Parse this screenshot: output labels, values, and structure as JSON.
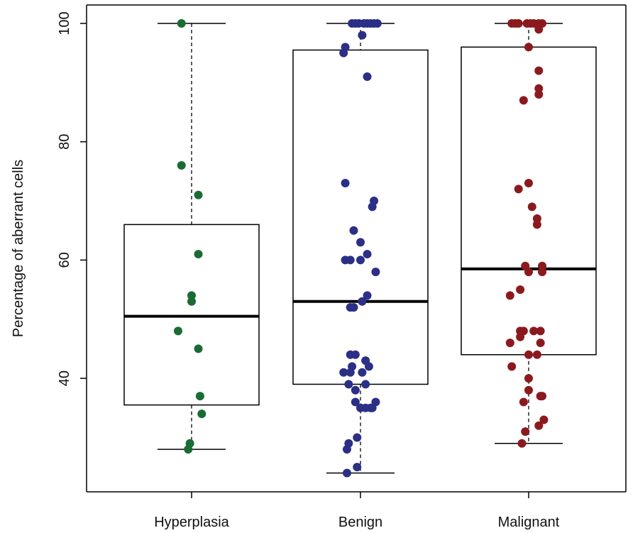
{
  "chart_data": {
    "type": "box",
    "title": "",
    "xlabel": "",
    "ylabel": "Percentage of aberrant cells",
    "ylim": [
      20,
      102
    ],
    "yticks": [
      40,
      60,
      80,
      100
    ],
    "grid": false,
    "legend": "none",
    "categories": [
      "Hyperplasia",
      "Benign",
      "Malignant"
    ],
    "series": [
      {
        "category": "Hyperplasia",
        "color": "#1a6b34",
        "box": {
          "whisker_low": 28,
          "q1": 35.5,
          "median": 50.5,
          "q3": 66,
          "whisker_high": 100
        },
        "points": [
          {
            "jitter": -0.06,
            "value": 100
          },
          {
            "jitter": -0.06,
            "value": 76
          },
          {
            "jitter": 0.04,
            "value": 71
          },
          {
            "jitter": 0.04,
            "value": 61
          },
          {
            "jitter": 0.0,
            "value": 54
          },
          {
            "jitter": 0.0,
            "value": 53
          },
          {
            "jitter": -0.08,
            "value": 48
          },
          {
            "jitter": 0.04,
            "value": 45
          },
          {
            "jitter": 0.05,
            "value": 37
          },
          {
            "jitter": 0.06,
            "value": 34
          },
          {
            "jitter": -0.01,
            "value": 29
          },
          {
            "jitter": -0.02,
            "value": 28
          }
        ]
      },
      {
        "category": "Benign",
        "color": "#2b2f86",
        "box": {
          "whisker_low": 24,
          "q1": 39,
          "median": 53,
          "q3": 95.5,
          "whisker_high": 100
        },
        "points": [
          {
            "jitter": -0.05,
            "value": 100
          },
          {
            "jitter": -0.03,
            "value": 100
          },
          {
            "jitter": -0.01,
            "value": 100
          },
          {
            "jitter": 0.02,
            "value": 100
          },
          {
            "jitter": 0.04,
            "value": 100
          },
          {
            "jitter": 0.06,
            "value": 100
          },
          {
            "jitter": 0.08,
            "value": 100
          },
          {
            "jitter": 0.1,
            "value": 100
          },
          {
            "jitter": 0.01,
            "value": 98
          },
          {
            "jitter": -0.09,
            "value": 96
          },
          {
            "jitter": -0.1,
            "value": 95
          },
          {
            "jitter": 0.04,
            "value": 91
          },
          {
            "jitter": -0.09,
            "value": 73
          },
          {
            "jitter": 0.08,
            "value": 70
          },
          {
            "jitter": 0.07,
            "value": 69
          },
          {
            "jitter": -0.04,
            "value": 65
          },
          {
            "jitter": 0.0,
            "value": 63
          },
          {
            "jitter": 0.04,
            "value": 61
          },
          {
            "jitter": -0.09,
            "value": 60
          },
          {
            "jitter": -0.06,
            "value": 60
          },
          {
            "jitter": 0.0,
            "value": 60
          },
          {
            "jitter": 0.09,
            "value": 58
          },
          {
            "jitter": 0.04,
            "value": 54
          },
          {
            "jitter": 0.01,
            "value": 53
          },
          {
            "jitter": -0.06,
            "value": 52
          },
          {
            "jitter": -0.04,
            "value": 52
          },
          {
            "jitter": -0.06,
            "value": 44
          },
          {
            "jitter": -0.03,
            "value": 44
          },
          {
            "jitter": 0.03,
            "value": 43
          },
          {
            "jitter": -0.05,
            "value": 42
          },
          {
            "jitter": 0.05,
            "value": 42
          },
          {
            "jitter": -0.1,
            "value": 41
          },
          {
            "jitter": -0.06,
            "value": 41
          },
          {
            "jitter": 0.01,
            "value": 41
          },
          {
            "jitter": -0.07,
            "value": 39
          },
          {
            "jitter": 0.03,
            "value": 39
          },
          {
            "jitter": -0.03,
            "value": 38
          },
          {
            "jitter": -0.03,
            "value": 36
          },
          {
            "jitter": 0.09,
            "value": 36
          },
          {
            "jitter": 0.0,
            "value": 35
          },
          {
            "jitter": 0.03,
            "value": 35
          },
          {
            "jitter": 0.06,
            "value": 35
          },
          {
            "jitter": 0.07,
            "value": 35
          },
          {
            "jitter": -0.02,
            "value": 30
          },
          {
            "jitter": -0.07,
            "value": 29
          },
          {
            "jitter": -0.08,
            "value": 28
          },
          {
            "jitter": -0.02,
            "value": 25
          },
          {
            "jitter": -0.08,
            "value": 24
          }
        ]
      },
      {
        "category": "Malignant",
        "color": "#8b1a1e",
        "box": {
          "whisker_low": 29,
          "q1": 44,
          "median": 58.5,
          "q3": 96,
          "whisker_high": 100
        },
        "points": [
          {
            "jitter": -0.1,
            "value": 100
          },
          {
            "jitter": -0.08,
            "value": 100
          },
          {
            "jitter": -0.06,
            "value": 100
          },
          {
            "jitter": -0.01,
            "value": 100
          },
          {
            "jitter": 0.01,
            "value": 100
          },
          {
            "jitter": 0.03,
            "value": 100
          },
          {
            "jitter": 0.06,
            "value": 100
          },
          {
            "jitter": 0.08,
            "value": 100
          },
          {
            "jitter": 0.06,
            "value": 99
          },
          {
            "jitter": 0.0,
            "value": 96
          },
          {
            "jitter": 0.06,
            "value": 92
          },
          {
            "jitter": 0.06,
            "value": 89
          },
          {
            "jitter": 0.06,
            "value": 88
          },
          {
            "jitter": -0.03,
            "value": 87
          },
          {
            "jitter": 0.0,
            "value": 73
          },
          {
            "jitter": -0.06,
            "value": 72
          },
          {
            "jitter": 0.02,
            "value": 69
          },
          {
            "jitter": 0.05,
            "value": 67
          },
          {
            "jitter": 0.05,
            "value": 66
          },
          {
            "jitter": -0.02,
            "value": 59
          },
          {
            "jitter": 0.08,
            "value": 59
          },
          {
            "jitter": 0.0,
            "value": 58
          },
          {
            "jitter": 0.08,
            "value": 58
          },
          {
            "jitter": -0.05,
            "value": 55
          },
          {
            "jitter": -0.11,
            "value": 54
          },
          {
            "jitter": -0.05,
            "value": 48
          },
          {
            "jitter": -0.03,
            "value": 48
          },
          {
            "jitter": 0.03,
            "value": 48
          },
          {
            "jitter": 0.07,
            "value": 48
          },
          {
            "jitter": -0.05,
            "value": 47
          },
          {
            "jitter": -0.11,
            "value": 46
          },
          {
            "jitter": 0.07,
            "value": 46
          },
          {
            "jitter": 0.0,
            "value": 44
          },
          {
            "jitter": 0.05,
            "value": 44
          },
          {
            "jitter": -0.1,
            "value": 42
          },
          {
            "jitter": 0.0,
            "value": 40
          },
          {
            "jitter": 0.0,
            "value": 38
          },
          {
            "jitter": 0.07,
            "value": 37
          },
          {
            "jitter": 0.08,
            "value": 37
          },
          {
            "jitter": -0.03,
            "value": 36
          },
          {
            "jitter": 0.09,
            "value": 33
          },
          {
            "jitter": 0.06,
            "value": 32
          },
          {
            "jitter": -0.02,
            "value": 31
          },
          {
            "jitter": -0.04,
            "value": 29
          }
        ]
      }
    ]
  }
}
